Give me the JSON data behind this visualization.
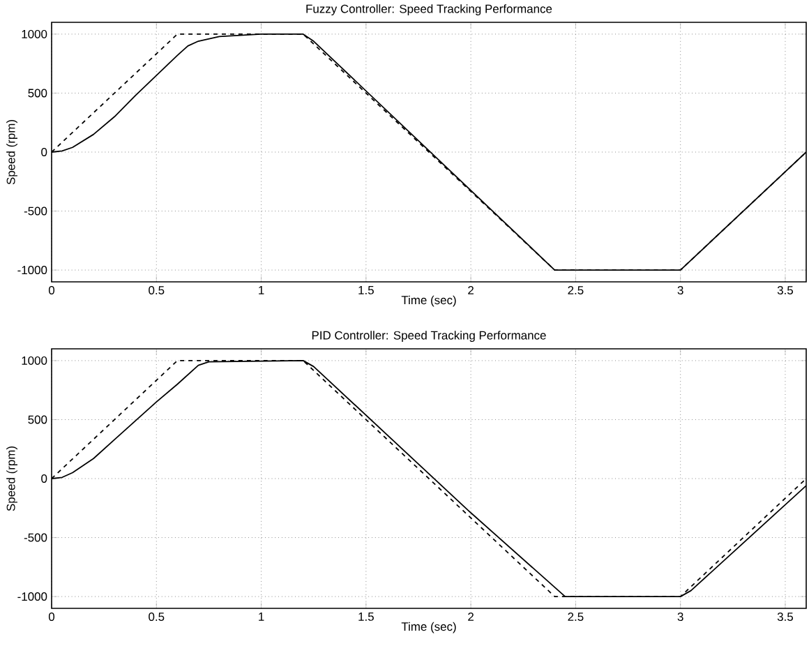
{
  "chart_data": [
    {
      "type": "line",
      "title": "Fuzzy Controller: Speed Tracking Performance",
      "xlabel": "Time (sec)",
      "ylabel": "Speed (rpm)",
      "xlim": [
        0,
        3.6
      ],
      "ylim": [
        -1100,
        1100
      ],
      "xticks": [
        0,
        0.5,
        1,
        1.5,
        2,
        2.5,
        3,
        3.5
      ],
      "yticks": [
        -1000,
        -500,
        0,
        500,
        1000
      ],
      "grid": true,
      "series": [
        {
          "line_style": "dashed",
          "color": "#000000",
          "x": [
            0,
            0.6,
            1.2,
            2.4,
            3.0,
            3.6
          ],
          "values": [
            0,
            1000,
            1000,
            -1000,
            -1000,
            0
          ]
        },
        {
          "line_style": "solid",
          "color": "#000000",
          "x": [
            0,
            0.05,
            0.1,
            0.2,
            0.3,
            0.4,
            0.5,
            0.6,
            0.65,
            0.7,
            0.8,
            0.9,
            1.0,
            1.2,
            1.25,
            2.4,
            3.0,
            3.6
          ],
          "values": [
            0,
            10,
            40,
            150,
            300,
            480,
            650,
            820,
            900,
            940,
            980,
            990,
            1000,
            1000,
            940,
            -1000,
            -1000,
            0
          ]
        }
      ]
    },
    {
      "type": "line",
      "title": "PID Controller: Speed Tracking Performance",
      "xlabel": "Time (sec)",
      "ylabel": "Speed (rpm)",
      "xlim": [
        0,
        3.6
      ],
      "ylim": [
        -1100,
        1100
      ],
      "xticks": [
        0,
        0.5,
        1,
        1.5,
        2,
        2.5,
        3,
        3.5
      ],
      "yticks": [
        -1000,
        -500,
        0,
        500,
        1000
      ],
      "grid": true,
      "series": [
        {
          "line_style": "dashed",
          "color": "#000000",
          "x": [
            0,
            0.6,
            1.2,
            2.4,
            3.0,
            3.6
          ],
          "values": [
            0,
            1000,
            1000,
            -1000,
            -1000,
            0
          ]
        },
        {
          "line_style": "solid",
          "color": "#000000",
          "x": [
            0,
            0.05,
            0.1,
            0.2,
            0.3,
            0.4,
            0.5,
            0.6,
            0.7,
            0.75,
            1.2,
            1.25,
            2.0,
            2.45,
            3.0,
            3.05,
            3.6
          ],
          "values": [
            0,
            10,
            50,
            170,
            330,
            490,
            650,
            800,
            960,
            990,
            1000,
            950,
            -290,
            -1000,
            -1000,
            -950,
            -60
          ]
        }
      ]
    }
  ]
}
